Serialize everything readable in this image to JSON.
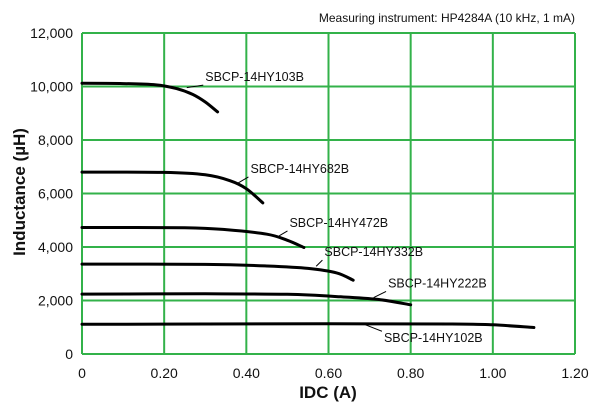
{
  "chart_data": {
    "type": "line",
    "title": "",
    "annotation": "Measuring instrument: HP4284A (10 kHz, 1 mA)",
    "xlabel": "IDC (A)",
    "ylabel": "Inductance (µH)",
    "xlim": [
      0,
      1.2
    ],
    "ylim": [
      0,
      12000
    ],
    "x_ticks": [
      "0",
      "0.20",
      "0.40",
      "0.60",
      "0.80",
      "1.00",
      "1.20"
    ],
    "y_ticks": [
      "0",
      "2,000",
      "4,000",
      "6,000",
      "8,000",
      "10,000",
      "12,000"
    ],
    "grid": true,
    "grid_color": "#33b24a",
    "line_color": "#000000",
    "series": [
      {
        "name": "SBCP-14HY103B",
        "label_at": [
          0.3,
          10200
        ],
        "leader_to": [
          0.255,
          9960
        ],
        "points": [
          [
            0,
            10120
          ],
          [
            0.1,
            10110
          ],
          [
            0.18,
            10060
          ],
          [
            0.23,
            9920
          ],
          [
            0.27,
            9700
          ],
          [
            0.3,
            9420
          ],
          [
            0.33,
            9050
          ]
        ]
      },
      {
        "name": "SBCP-14HY682B",
        "label_at": [
          0.41,
          6770
        ],
        "leader_to": [
          0.375,
          6350
        ],
        "points": [
          [
            0,
            6800
          ],
          [
            0.2,
            6790
          ],
          [
            0.3,
            6700
          ],
          [
            0.36,
            6480
          ],
          [
            0.4,
            6180
          ],
          [
            0.44,
            5650
          ]
        ]
      },
      {
        "name": "SBCP-14HY472B",
        "label_at": [
          0.505,
          4750
        ],
        "leader_to": [
          0.48,
          4420
        ],
        "points": [
          [
            0,
            4730
          ],
          [
            0.25,
            4720
          ],
          [
            0.35,
            4650
          ],
          [
            0.45,
            4480
          ],
          [
            0.5,
            4250
          ],
          [
            0.54,
            3980
          ]
        ]
      },
      {
        "name": "SBCP-14HY332B",
        "label_at": [
          0.59,
          3660
        ],
        "leader_to": [
          0.57,
          3280
        ],
        "points": [
          [
            0,
            3360
          ],
          [
            0.3,
            3350
          ],
          [
            0.45,
            3290
          ],
          [
            0.55,
            3200
          ],
          [
            0.62,
            3030
          ],
          [
            0.66,
            2760
          ]
        ]
      },
      {
        "name": "SBCP-14HY222B",
        "label_at": [
          0.745,
          2490
        ],
        "leader_to": [
          0.71,
          2110
        ],
        "points": [
          [
            0,
            2240
          ],
          [
            0.3,
            2250
          ],
          [
            0.5,
            2230
          ],
          [
            0.63,
            2140
          ],
          [
            0.72,
            2040
          ],
          [
            0.8,
            1840
          ]
        ]
      },
      {
        "name": "SBCP-14HY102B",
        "label_at": [
          0.735,
          440
        ],
        "leader_to": [
          0.69,
          1090
        ],
        "points": [
          [
            0,
            1110
          ],
          [
            0.3,
            1120
          ],
          [
            0.6,
            1130
          ],
          [
            0.9,
            1120
          ],
          [
            1.0,
            1090
          ],
          [
            1.1,
            990
          ]
        ]
      }
    ]
  }
}
